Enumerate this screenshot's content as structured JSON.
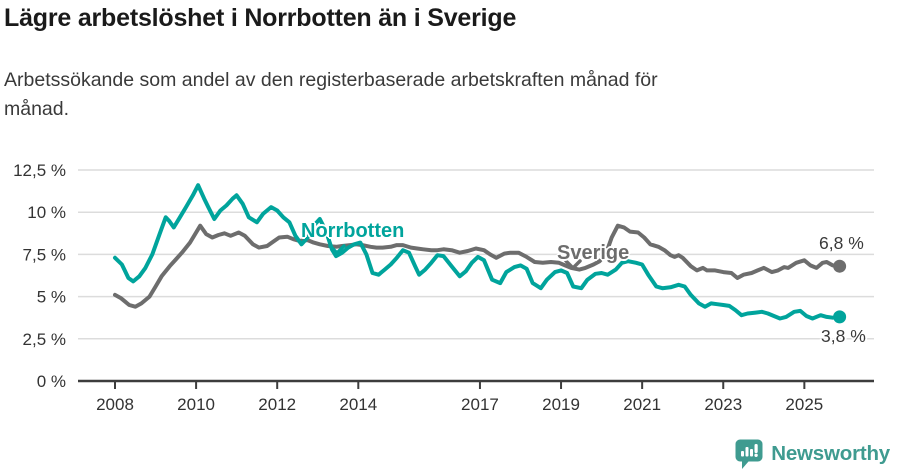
{
  "header": {
    "title": "Lägre arbetslöshet i Norrbotten än i Sverige",
    "subtitle_lines": [
      "Arbetssökande som andel av den registerbaserade arbetskraften månad för",
      "månad."
    ]
  },
  "colors": {
    "norrbotten_teal": "#00a49c",
    "sverige_gray": "#6d6d6d",
    "axis_dark": "#3d3d3d",
    "gridline": "#dcdcdc",
    "tick_text": "#333333",
    "end_label_text": "#3a3a3a",
    "brand_teal": "#3f9b90"
  },
  "footer": {
    "brand": "Newsworthy",
    "icon": "newsworthy-speech-bubble-chart-icon"
  },
  "chart_data": {
    "type": "line",
    "title": "Lägre arbetslöshet i Norrbotten än i Sverige",
    "subtitle": "Arbetssökande som andel av den registerbaserade arbetskraften månad för månad.",
    "xlabel": "",
    "ylabel": "",
    "grid": true,
    "legend_position": "inline-labels-on-lines",
    "ylim": [
      0,
      12.5
    ],
    "xlim": [
      2007.1,
      2026.7
    ],
    "y_ticks": {
      "values": [
        0,
        2.5,
        5,
        7.5,
        10,
        12.5
      ],
      "labels": [
        "0 %",
        "2,5 %",
        "5 %",
        "7,5 %",
        "10 %",
        "12,5 %"
      ]
    },
    "x_ticks": {
      "values": [
        2008,
        2010,
        2012,
        2014,
        2017,
        2019,
        2021,
        2023,
        2025
      ],
      "labels": [
        "2008",
        "2010",
        "2012",
        "2014",
        "2017",
        "2019",
        "2021",
        "2023",
        "2025"
      ]
    },
    "series": [
      {
        "name": "Norrbotten",
        "color": "#00a49c",
        "end_label": "3,8 %",
        "end_value": 3.8,
        "points": [
          [
            2008.0,
            7.3
          ],
          [
            2008.17,
            6.9
          ],
          [
            2008.33,
            6.1
          ],
          [
            2008.45,
            5.9
          ],
          [
            2008.6,
            6.2
          ],
          [
            2008.75,
            6.7
          ],
          [
            2008.92,
            7.5
          ],
          [
            2009.1,
            8.7
          ],
          [
            2009.25,
            9.7
          ],
          [
            2009.33,
            9.5
          ],
          [
            2009.45,
            9.1
          ],
          [
            2009.6,
            9.7
          ],
          [
            2009.75,
            10.3
          ],
          [
            2009.92,
            11.0
          ],
          [
            2010.05,
            11.6
          ],
          [
            2010.2,
            10.8
          ],
          [
            2010.3,
            10.3
          ],
          [
            2010.45,
            9.6
          ],
          [
            2010.6,
            10.1
          ],
          [
            2010.75,
            10.4
          ],
          [
            2010.9,
            10.8
          ],
          [
            2011.0,
            11.0
          ],
          [
            2011.15,
            10.5
          ],
          [
            2011.3,
            9.7
          ],
          [
            2011.5,
            9.4
          ],
          [
            2011.65,
            9.9
          ],
          [
            2011.85,
            10.3
          ],
          [
            2012.0,
            10.1
          ],
          [
            2012.15,
            9.7
          ],
          [
            2012.3,
            9.4
          ],
          [
            2012.45,
            8.6
          ],
          [
            2012.6,
            8.1
          ],
          [
            2012.75,
            8.5
          ],
          [
            2012.9,
            9.2
          ],
          [
            2013.05,
            9.6
          ],
          [
            2013.2,
            8.9
          ],
          [
            2013.35,
            7.8
          ],
          [
            2013.45,
            7.4
          ],
          [
            2013.6,
            7.6
          ],
          [
            2013.75,
            7.9
          ],
          [
            2013.9,
            8.1
          ],
          [
            2014.05,
            8.2
          ],
          [
            2014.2,
            7.5
          ],
          [
            2014.35,
            6.4
          ],
          [
            2014.5,
            6.3
          ],
          [
            2014.65,
            6.6
          ],
          [
            2014.8,
            6.9
          ],
          [
            2014.95,
            7.3
          ],
          [
            2015.1,
            7.75
          ],
          [
            2015.25,
            7.6
          ],
          [
            2015.4,
            6.8
          ],
          [
            2015.5,
            6.3
          ],
          [
            2015.65,
            6.6
          ],
          [
            2015.8,
            7.0
          ],
          [
            2015.95,
            7.45
          ],
          [
            2016.1,
            7.4
          ],
          [
            2016.3,
            6.8
          ],
          [
            2016.5,
            6.2
          ],
          [
            2016.65,
            6.5
          ],
          [
            2016.8,
            7.0
          ],
          [
            2016.95,
            7.35
          ],
          [
            2017.1,
            7.15
          ],
          [
            2017.3,
            6.0
          ],
          [
            2017.5,
            5.8
          ],
          [
            2017.65,
            6.45
          ],
          [
            2017.85,
            6.75
          ],
          [
            2018.0,
            6.85
          ],
          [
            2018.15,
            6.65
          ],
          [
            2018.3,
            5.8
          ],
          [
            2018.5,
            5.5
          ],
          [
            2018.65,
            6.0
          ],
          [
            2018.85,
            6.45
          ],
          [
            2019.0,
            6.55
          ],
          [
            2019.15,
            6.4
          ],
          [
            2019.3,
            5.6
          ],
          [
            2019.5,
            5.5
          ],
          [
            2019.65,
            6.0
          ],
          [
            2019.85,
            6.35
          ],
          [
            2020.0,
            6.4
          ],
          [
            2020.15,
            6.3
          ],
          [
            2020.35,
            6.6
          ],
          [
            2020.5,
            7.0
          ],
          [
            2020.65,
            7.1
          ],
          [
            2020.85,
            7.0
          ],
          [
            2021.0,
            6.9
          ],
          [
            2021.15,
            6.3
          ],
          [
            2021.35,
            5.6
          ],
          [
            2021.5,
            5.5
          ],
          [
            2021.7,
            5.55
          ],
          [
            2021.9,
            5.7
          ],
          [
            2022.05,
            5.6
          ],
          [
            2022.2,
            5.1
          ],
          [
            2022.4,
            4.6
          ],
          [
            2022.55,
            4.4
          ],
          [
            2022.7,
            4.6
          ],
          [
            2022.85,
            4.55
          ],
          [
            2023.0,
            4.5
          ],
          [
            2023.15,
            4.45
          ],
          [
            2023.3,
            4.2
          ],
          [
            2023.45,
            3.9
          ],
          [
            2023.6,
            4.0
          ],
          [
            2023.8,
            4.05
          ],
          [
            2023.95,
            4.1
          ],
          [
            2024.1,
            4.0
          ],
          [
            2024.25,
            3.85
          ],
          [
            2024.4,
            3.7
          ],
          [
            2024.55,
            3.8
          ],
          [
            2024.75,
            4.1
          ],
          [
            2024.9,
            4.15
          ],
          [
            2025.05,
            3.85
          ],
          [
            2025.2,
            3.7
          ],
          [
            2025.4,
            3.9
          ],
          [
            2025.55,
            3.8
          ],
          [
            2025.7,
            3.75
          ],
          [
            2025.87,
            3.8
          ]
        ]
      },
      {
        "name": "Sverige",
        "color": "#6d6d6d",
        "end_label": "6,8 %",
        "end_value": 6.8,
        "points": [
          [
            2008.0,
            5.1
          ],
          [
            2008.15,
            4.9
          ],
          [
            2008.35,
            4.5
          ],
          [
            2008.5,
            4.4
          ],
          [
            2008.65,
            4.6
          ],
          [
            2008.85,
            5.0
          ],
          [
            2009.0,
            5.6
          ],
          [
            2009.15,
            6.2
          ],
          [
            2009.35,
            6.8
          ],
          [
            2009.5,
            7.2
          ],
          [
            2009.65,
            7.6
          ],
          [
            2009.85,
            8.2
          ],
          [
            2010.0,
            8.8
          ],
          [
            2010.1,
            9.2
          ],
          [
            2010.25,
            8.7
          ],
          [
            2010.4,
            8.5
          ],
          [
            2010.55,
            8.65
          ],
          [
            2010.7,
            8.75
          ],
          [
            2010.85,
            8.6
          ],
          [
            2011.05,
            8.8
          ],
          [
            2011.2,
            8.6
          ],
          [
            2011.4,
            8.1
          ],
          [
            2011.55,
            7.9
          ],
          [
            2011.75,
            8.0
          ],
          [
            2011.9,
            8.25
          ],
          [
            2012.05,
            8.5
          ],
          [
            2012.25,
            8.55
          ],
          [
            2012.4,
            8.4
          ],
          [
            2012.55,
            8.3
          ],
          [
            2012.75,
            8.35
          ],
          [
            2012.9,
            8.2
          ],
          [
            2013.05,
            8.1
          ],
          [
            2013.25,
            8.0
          ],
          [
            2013.45,
            7.95
          ],
          [
            2013.6,
            8.0
          ],
          [
            2013.8,
            8.05
          ],
          [
            2013.95,
            8.1
          ],
          [
            2014.1,
            8.05
          ],
          [
            2014.3,
            7.95
          ],
          [
            2014.45,
            7.9
          ],
          [
            2014.6,
            7.9
          ],
          [
            2014.8,
            7.95
          ],
          [
            2014.95,
            8.05
          ],
          [
            2015.1,
            8.05
          ],
          [
            2015.3,
            7.9
          ],
          [
            2015.45,
            7.85
          ],
          [
            2015.6,
            7.8
          ],
          [
            2015.8,
            7.75
          ],
          [
            2015.95,
            7.75
          ],
          [
            2016.1,
            7.8
          ],
          [
            2016.3,
            7.75
          ],
          [
            2016.5,
            7.6
          ],
          [
            2016.7,
            7.7
          ],
          [
            2016.9,
            7.85
          ],
          [
            2017.1,
            7.75
          ],
          [
            2017.25,
            7.5
          ],
          [
            2017.4,
            7.3
          ],
          [
            2017.6,
            7.55
          ],
          [
            2017.75,
            7.6
          ],
          [
            2017.95,
            7.6
          ],
          [
            2018.15,
            7.35
          ],
          [
            2018.35,
            7.05
          ],
          [
            2018.55,
            7.0
          ],
          [
            2018.75,
            7.05
          ],
          [
            2018.95,
            7.0
          ],
          [
            2019.1,
            6.85
          ],
          [
            2019.25,
            6.7
          ],
          [
            2019.45,
            6.6
          ],
          [
            2019.6,
            6.7
          ],
          [
            2019.8,
            6.9
          ],
          [
            2019.95,
            7.1
          ],
          [
            2020.1,
            7.5
          ],
          [
            2020.25,
            8.5
          ],
          [
            2020.4,
            9.2
          ],
          [
            2020.55,
            9.1
          ],
          [
            2020.7,
            8.85
          ],
          [
            2020.9,
            8.8
          ],
          [
            2021.05,
            8.5
          ],
          [
            2021.2,
            8.1
          ],
          [
            2021.4,
            7.95
          ],
          [
            2021.55,
            7.75
          ],
          [
            2021.7,
            7.45
          ],
          [
            2021.8,
            7.35
          ],
          [
            2021.9,
            7.45
          ],
          [
            2022.0,
            7.3
          ],
          [
            2022.2,
            6.8
          ],
          [
            2022.35,
            6.55
          ],
          [
            2022.5,
            6.7
          ],
          [
            2022.6,
            6.55
          ],
          [
            2022.8,
            6.55
          ],
          [
            2023.0,
            6.45
          ],
          [
            2023.2,
            6.4
          ],
          [
            2023.35,
            6.1
          ],
          [
            2023.5,
            6.3
          ],
          [
            2023.7,
            6.4
          ],
          [
            2023.85,
            6.55
          ],
          [
            2024.0,
            6.7
          ],
          [
            2024.2,
            6.45
          ],
          [
            2024.35,
            6.55
          ],
          [
            2024.5,
            6.75
          ],
          [
            2024.6,
            6.7
          ],
          [
            2024.8,
            7.0
          ],
          [
            2025.0,
            7.15
          ],
          [
            2025.15,
            6.85
          ],
          [
            2025.3,
            6.7
          ],
          [
            2025.45,
            7.0
          ],
          [
            2025.55,
            7.05
          ],
          [
            2025.7,
            6.85
          ],
          [
            2025.87,
            6.8
          ]
        ]
      }
    ]
  }
}
